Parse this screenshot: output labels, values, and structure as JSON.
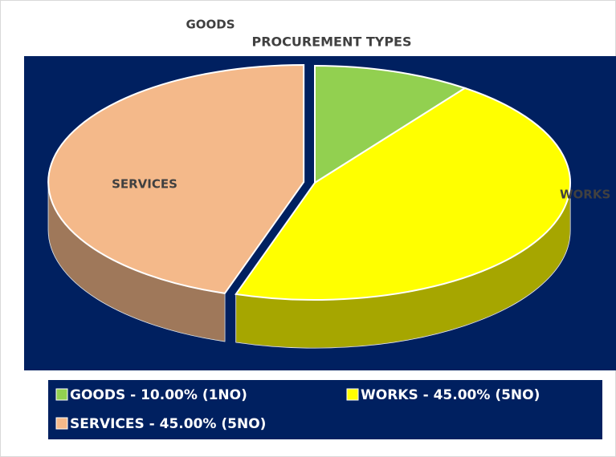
{
  "chart_data": {
    "type": "pie",
    "title": "PROCUREMENT TYPES",
    "categories": [
      "GOODS",
      "WORKS",
      "SERVICES"
    ],
    "values": [
      10,
      45,
      45
    ],
    "colors": [
      "#92d050",
      "#ffff00",
      "#f4b98a"
    ],
    "legend_labels": [
      "GOODS - 10.00% (1NO)",
      "WORKS - 45.00% (5NO)",
      "SERVICES - 45.00% (5NO)"
    ],
    "exploded": [
      false,
      false,
      true
    ]
  }
}
